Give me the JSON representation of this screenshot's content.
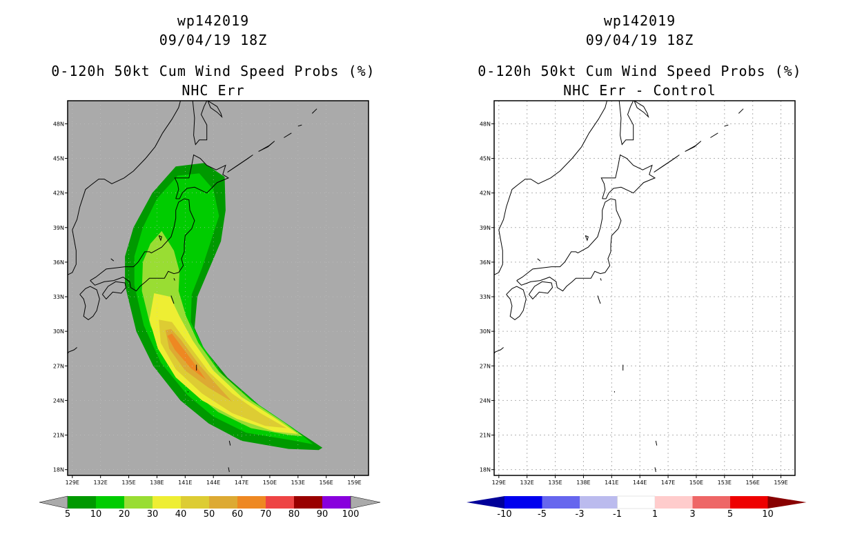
{
  "chart_data": [
    {
      "type": "heatmap",
      "storm_id": "wp142019",
      "datetime": "09/04/19 18Z",
      "title": "0-120h 50kt Cum Wind Speed Probs (%)",
      "subtitle": "NHC Err",
      "lon_ticks": [
        "129E",
        "132E",
        "135E",
        "138E",
        "141E",
        "144E",
        "147E",
        "150E",
        "153E",
        "156E",
        "159E"
      ],
      "lat_ticks": [
        "18N",
        "21N",
        "24N",
        "27N",
        "30N",
        "33N",
        "36N",
        "39N",
        "42N",
        "45N",
        "48N"
      ],
      "xlim": [
        128.5,
        160.5
      ],
      "ylim": [
        17.5,
        50.0
      ],
      "colorbar": {
        "labels": [
          "5",
          "10",
          "20",
          "30",
          "40",
          "50",
          "60",
          "70",
          "80",
          "90",
          "100"
        ],
        "colors": [
          "#009900",
          "#00cc00",
          "#99dd33",
          "#eeee33",
          "#ddcc33",
          "#ddaa33",
          "#ee8822",
          "#ee4444",
          "#990000",
          "#8800dd"
        ],
        "end_color": "#aaaaaa"
      },
      "swath_levels": [
        {
          "min": 5,
          "color": "#009900",
          "polygon": [
            [
              145.2,
              43.4
            ],
            [
              143.0,
              44.6
            ],
            [
              140.0,
              44.3
            ],
            [
              137.5,
              42.0
            ],
            [
              135.5,
              39.0
            ],
            [
              134.6,
              36.5
            ],
            [
              134.6,
              34.0
            ],
            [
              135.8,
              30.0
            ],
            [
              137.6,
              27.0
            ],
            [
              140.5,
              24.0
            ],
            [
              143.5,
              22.0
            ],
            [
              147.0,
              20.5
            ],
            [
              152.0,
              19.8
            ],
            [
              155.2,
              19.7
            ],
            [
              155.6,
              19.9
            ],
            [
              153.2,
              21.2
            ],
            [
              149.0,
              23.5
            ],
            [
              145.5,
              26.0
            ],
            [
              143.0,
              28.5
            ],
            [
              142.0,
              30.3
            ],
            [
              142.3,
              33.0
            ],
            [
              143.6,
              35.5
            ],
            [
              144.8,
              37.8
            ],
            [
              145.3,
              40.5
            ]
          ]
        },
        {
          "min": 10,
          "color": "#00cc00",
          "polygon": [
            [
              144.0,
              42.3
            ],
            [
              142.5,
              43.7
            ],
            [
              140.2,
              43.5
            ],
            [
              138.0,
              41.5
            ],
            [
              136.5,
              39.0
            ],
            [
              135.6,
              36.5
            ],
            [
              135.6,
              34.0
            ],
            [
              136.6,
              30.5
            ],
            [
              138.4,
              27.3
            ],
            [
              141.2,
              24.5
            ],
            [
              144.0,
              22.6
            ],
            [
              147.5,
              21.2
            ],
            [
              152.0,
              20.6
            ],
            [
              154.6,
              20.2
            ],
            [
              152.5,
              21.6
            ],
            [
              148.5,
              23.8
            ],
            [
              145.0,
              26.2
            ],
            [
              142.8,
              28.8
            ],
            [
              141.6,
              30.8
            ],
            [
              141.7,
              33.2
            ],
            [
              142.8,
              35.5
            ],
            [
              143.8,
              38.0
            ],
            [
              144.6,
              40.0
            ]
          ]
        },
        {
          "min": 20,
          "color": "#99dd33",
          "polygon": [
            [
              138.5,
              38.7
            ],
            [
              137.3,
              37.6
            ],
            [
              136.5,
              36.0
            ],
            [
              136.4,
              33.5
            ],
            [
              137.3,
              30.5
            ],
            [
              139.0,
              27.5
            ],
            [
              141.8,
              24.8
            ],
            [
              144.5,
              23.0
            ],
            [
              148.0,
              21.6
            ],
            [
              152.0,
              21.0
            ],
            [
              153.5,
              20.9
            ],
            [
              151.5,
              22.1
            ],
            [
              148.0,
              24.0
            ],
            [
              144.6,
              26.5
            ],
            [
              142.4,
              29.0
            ],
            [
              141.1,
              31.3
            ],
            [
              140.3,
              33.5
            ],
            [
              140.4,
              35.2
            ],
            [
              139.8,
              37.0
            ]
          ]
        },
        {
          "min": 30,
          "color": "#eeee33",
          "polygon": [
            [
              137.7,
              33.3
            ],
            [
              137.2,
              31.0
            ],
            [
              138.1,
              28.5
            ],
            [
              140.0,
              26.0
            ],
            [
              142.8,
              24.0
            ],
            [
              146.5,
              22.4
            ],
            [
              150.5,
              21.3
            ],
            [
              153.0,
              21.1
            ],
            [
              150.5,
              22.5
            ],
            [
              147.0,
              24.3
            ],
            [
              144.0,
              26.6
            ],
            [
              141.8,
              29.2
            ],
            [
              140.4,
              31.3
            ],
            [
              139.4,
              33.0
            ]
          ]
        },
        {
          "min": 40,
          "color": "#ddcc33",
          "polygon": [
            [
              138.2,
              31.0
            ],
            [
              138.4,
              29.0
            ],
            [
              140.0,
              26.7
            ],
            [
              142.8,
              24.6
            ],
            [
              146.0,
              22.9
            ],
            [
              149.5,
              21.8
            ],
            [
              151.8,
              21.6
            ],
            [
              149.0,
              22.9
            ],
            [
              146.0,
              24.6
            ],
            [
              143.5,
              26.5
            ],
            [
              141.4,
              28.8
            ],
            [
              139.6,
              30.8
            ]
          ]
        },
        {
          "min": 50,
          "color": "#ddaa33",
          "polygon": [
            [
              138.9,
              30.1
            ],
            [
              139.3,
              28.5
            ],
            [
              141.0,
              26.6
            ],
            [
              143.5,
              25.1
            ],
            [
              146.0,
              23.9
            ],
            [
              144.2,
              25.5
            ],
            [
              142.3,
              27.3
            ],
            [
              140.5,
              29.3
            ],
            [
              139.5,
              30.2
            ]
          ]
        },
        {
          "min": 60,
          "color": "#ee8822",
          "polygon": [
            [
              139.1,
              29.6
            ],
            [
              139.9,
              28.4
            ],
            [
              141.6,
              26.8
            ],
            [
              143.2,
              25.8
            ],
            [
              141.8,
              27.4
            ],
            [
              140.5,
              28.8
            ],
            [
              139.6,
              29.8
            ]
          ]
        }
      ]
    },
    {
      "type": "heatmap",
      "storm_id": "wp142019",
      "datetime": "09/04/19 18Z",
      "title": "0-120h 50kt Cum Wind Speed Probs (%)",
      "subtitle": "NHC Err - Control",
      "lon_ticks": [
        "129E",
        "132E",
        "135E",
        "138E",
        "141E",
        "144E",
        "147E",
        "150E",
        "153E",
        "156E",
        "159E"
      ],
      "lat_ticks": [
        "18N",
        "21N",
        "24N",
        "27N",
        "30N",
        "33N",
        "36N",
        "39N",
        "42N",
        "45N",
        "48N"
      ],
      "xlim": [
        128.5,
        160.5
      ],
      "ylim": [
        17.5,
        50.0
      ],
      "colorbar": {
        "labels": [
          "-10",
          "-5",
          "-3",
          "-1",
          "1",
          "3",
          "5",
          "10"
        ],
        "colors": [
          "#0000ee",
          "#6666ee",
          "#bbbbee",
          "#ffffff",
          "#ffcccc",
          "#ee6666",
          "#ee0000"
        ],
        "end_low_color": "#000099",
        "end_high_color": "#880000"
      },
      "swath_levels": []
    }
  ]
}
